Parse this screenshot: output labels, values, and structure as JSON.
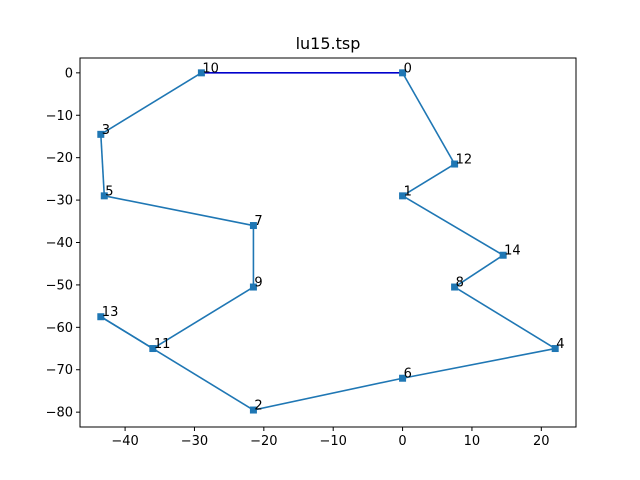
{
  "chart_data": {
    "type": "line",
    "title": "lu15.tsp",
    "xlim": [
      -46.5,
      25
    ],
    "ylim": [
      -83.5,
      3.5
    ],
    "x_ticks": [
      -40,
      -30,
      -20,
      -10,
      0,
      10,
      20
    ],
    "y_ticks": [
      0,
      -10,
      -20,
      -30,
      -40,
      -50,
      -60,
      -70,
      -80
    ],
    "x_tick_labels": [
      "−40",
      "−30",
      "−20",
      "−10",
      "0",
      "10",
      "20"
    ],
    "y_tick_labels": [
      "0",
      "−10",
      "−20",
      "−30",
      "−40",
      "−50",
      "−60",
      "−70",
      "−80"
    ],
    "grid": false,
    "nodes": [
      {
        "id": "0",
        "x": 0,
        "y": 0
      },
      {
        "id": "1",
        "x": 0,
        "y": -29
      },
      {
        "id": "2",
        "x": -21.5,
        "y": -79.5
      },
      {
        "id": "3",
        "x": -43.5,
        "y": -14.5
      },
      {
        "id": "4",
        "x": 22,
        "y": -65
      },
      {
        "id": "5",
        "x": -43,
        "y": -29
      },
      {
        "id": "6",
        "x": 0,
        "y": -72
      },
      {
        "id": "7",
        "x": -21.5,
        "y": -36
      },
      {
        "id": "8",
        "x": 7.5,
        "y": -50.5
      },
      {
        "id": "9",
        "x": -21.5,
        "y": -50.5
      },
      {
        "id": "10",
        "x": -29,
        "y": 0
      },
      {
        "id": "11",
        "x": -36,
        "y": -65
      },
      {
        "id": "12",
        "x": 7.5,
        "y": -21.5
      },
      {
        "id": "13",
        "x": -43.5,
        "y": -57.5
      },
      {
        "id": "14",
        "x": 14.5,
        "y": -43
      }
    ],
    "tour": [
      "10",
      "3",
      "5",
      "7",
      "9",
      "11",
      "13",
      "11",
      "2",
      "6",
      "4",
      "8",
      "14",
      "1",
      "12",
      "0"
    ],
    "highlight_edge": [
      "10",
      "0"
    ],
    "colors": {
      "line": "#1f77b4",
      "marker": "#1f77b4",
      "highlight": "#0000cc",
      "axes": "#000000"
    }
  }
}
